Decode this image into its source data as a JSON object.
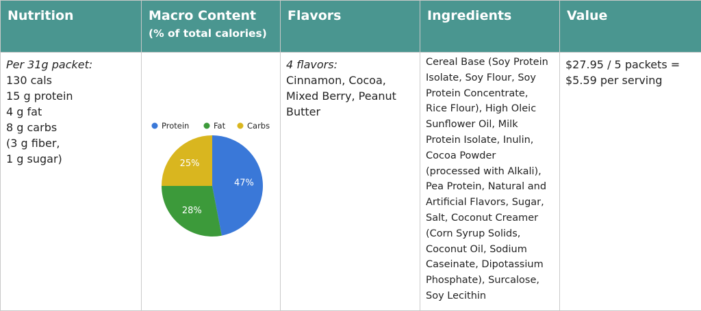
{
  "headers": [
    {
      "title": "Nutrition",
      "subtitle": ""
    },
    {
      "title": "Macro Content",
      "subtitle": "(% of total calories)"
    },
    {
      "title": "Flavors",
      "subtitle": ""
    },
    {
      "title": "Ingredients",
      "subtitle": ""
    },
    {
      "title": "Value",
      "subtitle": ""
    }
  ],
  "nutrition": {
    "heading": "Per 31g packet:",
    "lines": [
      "130 cals",
      "15 g protein",
      "4 g fat",
      "8 g carbs",
      "(3 g fiber,",
      "1 g sugar)"
    ]
  },
  "flavors": {
    "heading": "4 flavors:",
    "lines": [
      "Cinnamon, Cocoa,",
      "Mixed Berry, Peanut",
      "Butter"
    ]
  },
  "ingredients": {
    "lines": [
      "Cereal Base (Soy Protein",
      "Isolate, Soy Flour, Soy",
      "Protein Concentrate,",
      "Rice Flour), High Oleic",
      "Sunflower Oil, Milk",
      "Protein Isolate, Inulin,",
      "Cocoa Powder",
      "(processed with Alkali),",
      "Pea Protein, Natural and",
      "Artificial Flavors, Sugar,",
      "Salt, Coconut Creamer",
      "(Corn Syrup Solids,",
      "Coconut Oil, Sodium",
      "Caseinate, Dipotassium",
      "Phosphate), Surcalose,",
      "Soy Lecithin"
    ]
  },
  "value": {
    "lines": [
      "$27.95 / 5 packets =",
      "$5.59 per serving"
    ]
  },
  "chart_data": {
    "type": "pie",
    "categories": [
      "Protein",
      "Fat",
      "Carbs"
    ],
    "values": [
      47,
      28,
      25
    ],
    "labels": [
      "47%",
      "28%",
      "25%"
    ],
    "colors": [
      "#3a78d8",
      "#3c9a3a",
      "#d9b61f"
    ],
    "legend_position": "top"
  }
}
